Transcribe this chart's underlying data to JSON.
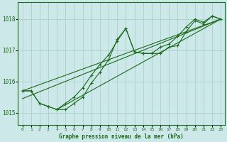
{
  "x": [
    0,
    1,
    2,
    3,
    4,
    5,
    6,
    7,
    8,
    9,
    10,
    11,
    12,
    13,
    14,
    15,
    16,
    17,
    18,
    19,
    20,
    21,
    22,
    23
  ],
  "line1": [
    1015.7,
    1015.7,
    1015.3,
    1015.2,
    1015.1,
    1015.1,
    1015.3,
    1015.5,
    1015.95,
    1016.3,
    1016.7,
    1017.35,
    1017.7,
    1016.95,
    1016.9,
    1016.9,
    1016.9,
    1017.1,
    1017.15,
    1017.6,
    1017.95,
    1017.85,
    1018.1,
    1018.0
  ],
  "line2": [
    1015.7,
    1015.7,
    1015.3,
    1015.2,
    1015.1,
    1015.3,
    1015.5,
    1015.8,
    1016.2,
    1016.55,
    1016.85,
    1017.3,
    1017.7,
    1016.95,
    1016.9,
    1016.9,
    1017.1,
    1017.2,
    1017.45,
    1017.75,
    1018.0,
    1017.9,
    1018.1,
    1018.0
  ],
  "line3_x": [
    0,
    23
  ],
  "line3_y": [
    1015.7,
    1018.0
  ],
  "line4_x": [
    0,
    23
  ],
  "line4_y": [
    1015.45,
    1018.0
  ],
  "line5_x": [
    4,
    23
  ],
  "line5_y": [
    1015.1,
    1018.0
  ],
  "line_color": "#1a6b1a",
  "bg_color": "#cce8e8",
  "grid_color": "#aad0d0",
  "xlabel": "Graphe pression niveau de la mer (hPa)",
  "ylim": [
    1014.6,
    1018.55
  ],
  "xlim": [
    -0.5,
    23.5
  ],
  "yticks": [
    1015,
    1016,
    1017,
    1018
  ],
  "xticks": [
    0,
    1,
    2,
    3,
    4,
    5,
    6,
    7,
    8,
    9,
    10,
    11,
    12,
    13,
    14,
    15,
    16,
    17,
    18,
    19,
    20,
    21,
    22,
    23
  ]
}
